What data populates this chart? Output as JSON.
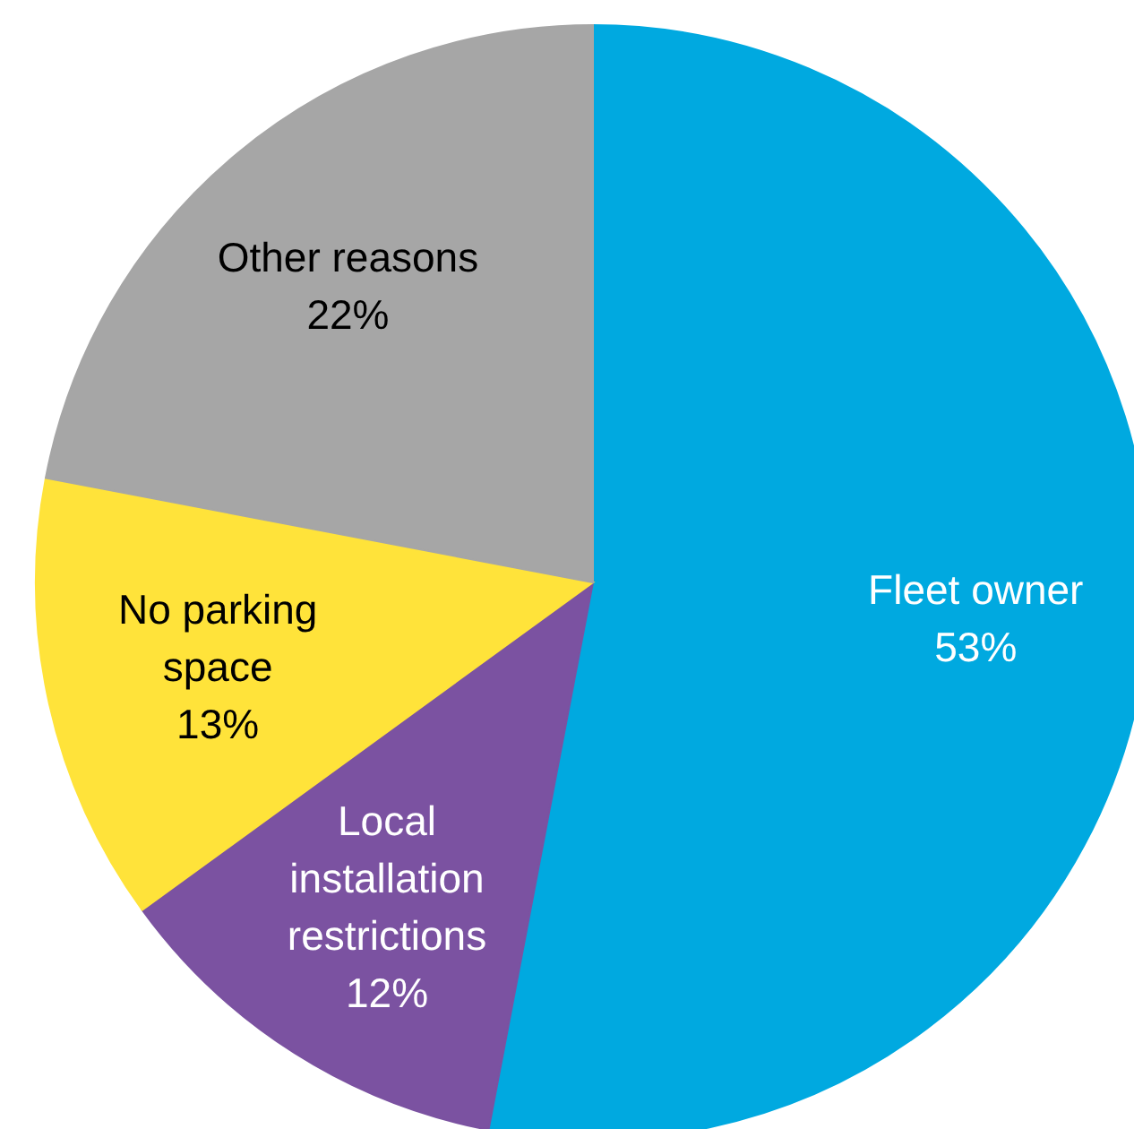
{
  "chart_data": {
    "type": "pie",
    "categories": [
      "Fleet owner",
      "Local installation restrictions",
      "No parking space",
      "Other reasons"
    ],
    "values": [
      53,
      12,
      13,
      22
    ],
    "value_labels": [
      "53%",
      "12%",
      "13%",
      "22%"
    ],
    "colors": [
      "#00a9e0",
      "#7b52a1",
      "#ffe33a",
      "#a6a6a6"
    ]
  }
}
